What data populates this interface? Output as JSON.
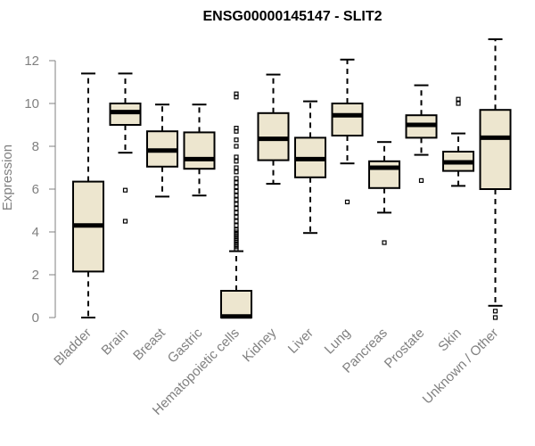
{
  "chart_data": {
    "type": "boxplot",
    "title": "ENSG00000145147 - SLIT2",
    "xlabel": "",
    "ylabel": "Expression",
    "ylim": [
      0,
      12.5
    ],
    "yticks": [
      0,
      2,
      4,
      6,
      8,
      10,
      12
    ],
    "box_fill": "#ede6cf",
    "categories": [
      "Bladder",
      "Brain",
      "Breast",
      "Gastric",
      "Hematopoietic cells",
      "Kidney",
      "Liver",
      "Lung",
      "Pancreas",
      "Prostate",
      "Skin",
      "Unknown / Other"
    ],
    "series": [
      {
        "name": "Bladder",
        "whisker_low": 0.0,
        "q1": 2.15,
        "median": 4.3,
        "q3": 6.35,
        "whisker_high": 11.4,
        "outliers": []
      },
      {
        "name": "Brain",
        "whisker_low": 7.7,
        "q1": 9.0,
        "median": 9.6,
        "q3": 10.0,
        "whisker_high": 11.4,
        "outliers": [
          5.95,
          4.5
        ]
      },
      {
        "name": "Breast",
        "whisker_low": 5.65,
        "q1": 7.05,
        "median": 7.8,
        "q3": 8.7,
        "whisker_high": 9.95,
        "outliers": []
      },
      {
        "name": "Gastric",
        "whisker_low": 5.7,
        "q1": 6.95,
        "median": 7.4,
        "q3": 8.65,
        "whisker_high": 9.95,
        "outliers": []
      },
      {
        "name": "Hematopoietic cells",
        "whisker_low": 0.0,
        "q1": 0.0,
        "median": 0.05,
        "q3": 1.25,
        "whisker_high": 3.1,
        "outliers": [
          3.2,
          3.3,
          3.4,
          3.5,
          3.6,
          3.7,
          3.8,
          3.9,
          4.0,
          4.1,
          4.3,
          4.5,
          4.7,
          4.9,
          5.1,
          5.3,
          5.5,
          5.7,
          5.9,
          6.1,
          6.3,
          6.5,
          6.8,
          7.0,
          7.3,
          7.5,
          8.0,
          8.3,
          8.7,
          8.85,
          10.3,
          10.45
        ]
      },
      {
        "name": "Kidney",
        "whisker_low": 6.25,
        "q1": 7.35,
        "median": 8.35,
        "q3": 9.55,
        "whisker_high": 11.35,
        "outliers": []
      },
      {
        "name": "Liver",
        "whisker_low": 3.95,
        "q1": 6.55,
        "median": 7.4,
        "q3": 8.4,
        "whisker_high": 10.1,
        "outliers": []
      },
      {
        "name": "Lung",
        "whisker_low": 7.2,
        "q1": 8.5,
        "median": 9.45,
        "q3": 10.0,
        "whisker_high": 12.05,
        "outliers": [
          5.4
        ]
      },
      {
        "name": "Pancreas",
        "whisker_low": 4.9,
        "q1": 6.05,
        "median": 7.0,
        "q3": 7.3,
        "whisker_high": 8.2,
        "outliers": [
          3.5
        ]
      },
      {
        "name": "Prostate",
        "whisker_low": 7.6,
        "q1": 8.4,
        "median": 9.0,
        "q3": 9.45,
        "whisker_high": 10.85,
        "outliers": [
          6.4
        ]
      },
      {
        "name": "Skin",
        "whisker_low": 6.15,
        "q1": 6.85,
        "median": 7.25,
        "q3": 7.75,
        "whisker_high": 8.6,
        "outliers": [
          10.0,
          10.2
        ]
      },
      {
        "name": "Unknown / Other",
        "whisker_low": 0.55,
        "q1": 6.0,
        "median": 8.4,
        "q3": 9.7,
        "whisker_high": 13.0,
        "outliers": [
          0.3,
          0.0
        ]
      }
    ]
  }
}
